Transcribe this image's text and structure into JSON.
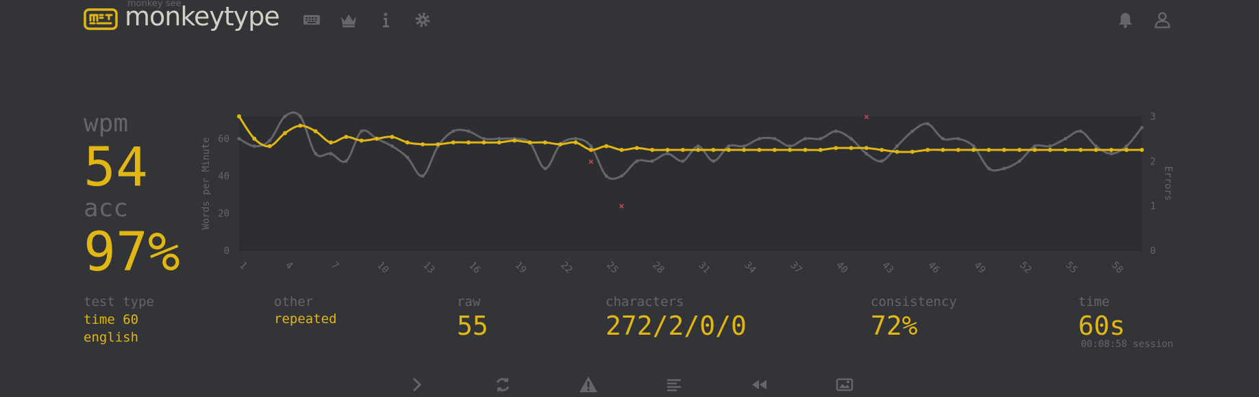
{
  "app": {
    "logo_small": "monkey see",
    "logo_text": "monkeytype"
  },
  "nav_icons": [
    "keyboard-icon",
    "crown-icon",
    "info-icon",
    "gear-icon"
  ],
  "right_icons": [
    "bell-icon",
    "user-icon"
  ],
  "stats": {
    "wpm_label": "wpm",
    "wpm": "54",
    "acc_label": "acc",
    "acc": "97%"
  },
  "details": {
    "test_type_label": "test type",
    "test_type_1": "time 60",
    "test_type_2": "english",
    "other_label": "other",
    "other_value": "repeated",
    "raw_label": "raw",
    "raw_value": "55",
    "characters_label": "characters",
    "characters_value": "272/2/0/0",
    "consistency_label": "consistency",
    "consistency_value": "72%",
    "time_label": "time",
    "time_value": "60s",
    "session": "00:08:58 session"
  },
  "bottom_icons": [
    "next-test-icon",
    "restart-icon",
    "warning-icon",
    "words-history-icon",
    "replay-icon",
    "screenshot-icon"
  ],
  "colors": {
    "accent": "#e2b714",
    "raw": "#646669",
    "error": "#ca4754",
    "text": "#d1d0c5",
    "bg": "#323437"
  },
  "chart_data": {
    "type": "line",
    "ylabel": "Words per Minute",
    "y2label": "Errors",
    "ylim": [
      0,
      72
    ],
    "y2lim": [
      0,
      3
    ],
    "yticks": [
      0,
      20,
      40,
      60
    ],
    "y2ticks": [
      0,
      1,
      2,
      3
    ],
    "xticks": [
      1,
      4,
      7,
      10,
      13,
      16,
      19,
      22,
      25,
      28,
      31,
      34,
      37,
      40,
      43,
      46,
      49,
      52,
      55,
      58
    ],
    "x": [
      1,
      2,
      3,
      4,
      5,
      6,
      7,
      8,
      9,
      10,
      11,
      12,
      13,
      14,
      15,
      16,
      17,
      18,
      19,
      20,
      21,
      22,
      23,
      24,
      25,
      26,
      27,
      28,
      29,
      30,
      31,
      32,
      33,
      34,
      35,
      36,
      37,
      38,
      39,
      40,
      41,
      42,
      43,
      44,
      45,
      46,
      47,
      48,
      49,
      50,
      51,
      52,
      53,
      54,
      55,
      56,
      57,
      58,
      59,
      60
    ],
    "series": [
      {
        "values": [
          72,
          60,
          56,
          63,
          67,
          64,
          58,
          61,
          59,
          60,
          61,
          58,
          57,
          57,
          58,
          58,
          58,
          58,
          59,
          58,
          58,
          57,
          58,
          54,
          56,
          54,
          55,
          54,
          54,
          54,
          54,
          54,
          54,
          54,
          54,
          54,
          54,
          54,
          54,
          55,
          55,
          55,
          54,
          53,
          53,
          54,
          54,
          54,
          54,
          54,
          54,
          54,
          54,
          54,
          54,
          54,
          54,
          54,
          54,
          54
        ]
      },
      {
        "values": [
          60,
          56,
          59,
          72,
          72,
          52,
          52,
          48,
          64,
          60,
          56,
          50,
          40,
          56,
          64,
          64,
          60,
          60,
          60,
          58,
          44,
          57,
          60,
          56,
          40,
          40,
          48,
          48,
          52,
          48,
          56,
          48,
          56,
          56,
          60,
          60,
          56,
          60,
          60,
          64,
          60,
          52,
          48,
          56,
          64,
          68,
          60,
          60,
          56,
          44,
          44,
          48,
          56,
          56,
          60,
          64,
          56,
          52,
          56,
          66
        ]
      }
    ],
    "errors": [
      {
        "x": 24,
        "y": 2
      },
      {
        "x": 26,
        "y": 1
      },
      {
        "x": 42,
        "y": 3
      }
    ]
  }
}
